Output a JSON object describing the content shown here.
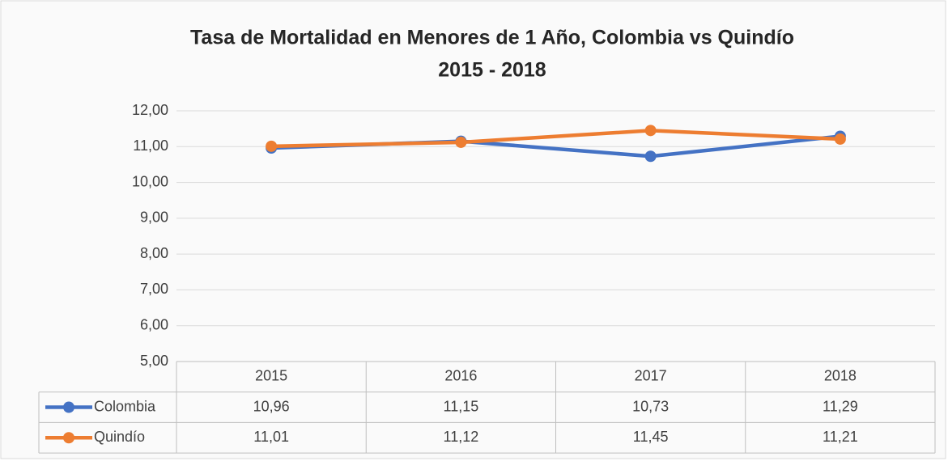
{
  "chart_data": {
    "type": "line",
    "title": "Tasa de Mortalidad en Menores de 1 Año, Colombia vs Quindío",
    "subtitle": "2015 - 2018",
    "categories": [
      "2015",
      "2016",
      "2017",
      "2018"
    ],
    "series": [
      {
        "name": "Colombia",
        "color": "#4472c4",
        "values": [
          10.96,
          11.15,
          10.73,
          11.29
        ],
        "value_labels": [
          "10,96",
          "11,15",
          "10,73",
          "11,29"
        ]
      },
      {
        "name": "Quindío",
        "color": "#ed7d31",
        "values": [
          11.01,
          11.12,
          11.45,
          11.21
        ],
        "value_labels": [
          "11,01",
          "11,12",
          "11,45",
          "11,21"
        ]
      }
    ],
    "ylim": [
      5,
      12
    ],
    "yticks": [
      {
        "value": 5,
        "label": "5,00"
      },
      {
        "value": 6,
        "label": "6,00"
      },
      {
        "value": 7,
        "label": "7,00"
      },
      {
        "value": 8,
        "label": "8,00"
      },
      {
        "value": 9,
        "label": "9,00"
      },
      {
        "value": 10,
        "label": "10,00"
      },
      {
        "value": 11,
        "label": "11,00"
      },
      {
        "value": 12,
        "label": "12,00"
      }
    ],
    "grid": true
  }
}
